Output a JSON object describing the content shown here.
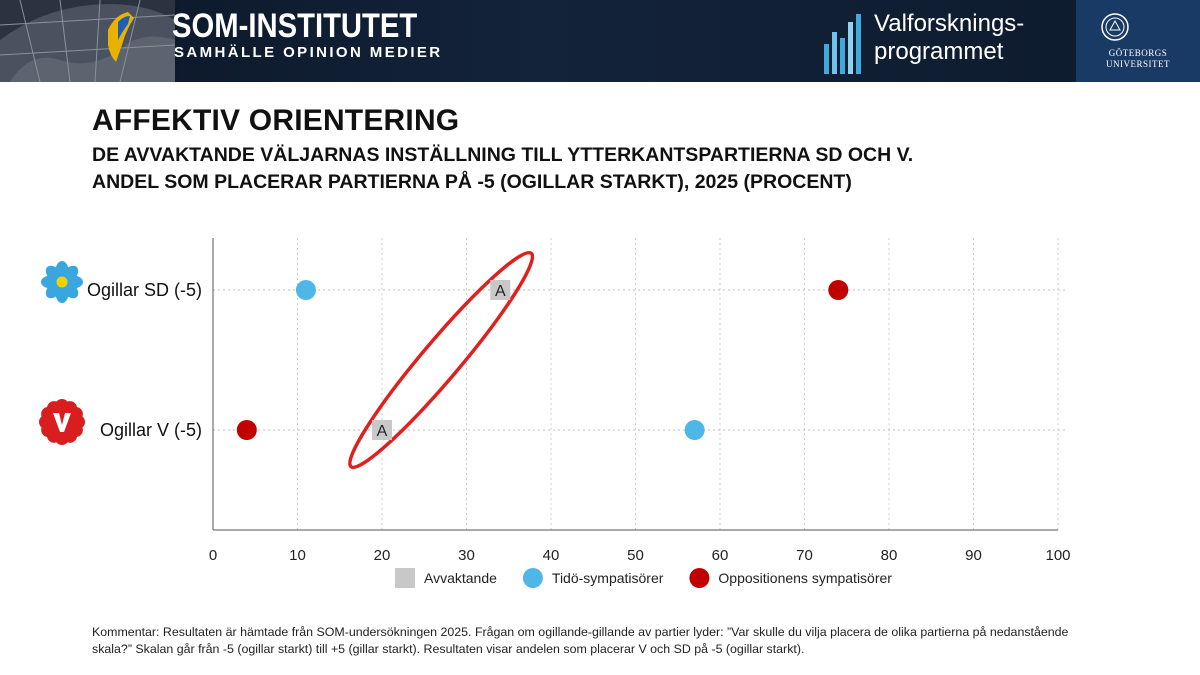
{
  "header": {
    "brand_title": "SOM-INSTITUTET",
    "brand_subtitle": "SAMHÄLLE OPINION MEDIER",
    "program_line1": "Valforsknings-",
    "program_line2": "programmet",
    "university_line1": "GÖTEBORGS",
    "university_line2": "UNIVERSITET"
  },
  "title": "AFFEKTIV ORIENTERING",
  "subtitle_line1": "DE AVVAKTANDE VÄLJARNAS INSTÄLLNING TILL YTTERKANTSPARTIERNA SD OCH V.",
  "subtitle_line2": "ANDEL SOM PLACERAR PARTIERNA PÅ -5 (OGILLAR STARKT), 2025 (PROCENT)",
  "comment": "Kommentar: Resultaten är hämtade från SOM-undersökningen 2025. Frågan om ogillande-gillande av partier lyder: ”Var skulle du vilja placera de olika partierna på nedanstående skala?” Skalan går från -5 (ogillar starkt) till +5 (gillar starkt). Resultaten visar andelen som placerar V och SD på -5 (ogillar starkt).",
  "colors": {
    "avvaktande": "#c8c8c8",
    "tido": "#4fb6e8",
    "opposition": "#c00000",
    "highlight": "#e01f1f"
  },
  "chart_data": {
    "type": "scatter",
    "categories": [
      "Ogillar SD (-5)",
      "Ogillar V (-5)"
    ],
    "category_icons": [
      "sd-flower-icon",
      "v-party-icon"
    ],
    "xlim": [
      0,
      100
    ],
    "xticks": [
      0,
      10,
      20,
      30,
      40,
      50,
      60,
      70,
      80,
      90,
      100
    ],
    "grid": true,
    "legend_position": "bottom",
    "series": [
      {
        "name": "Avvaktande",
        "marker": "square",
        "marker_label": "A",
        "color": "#c8c8c8",
        "values": [
          34,
          20
        ]
      },
      {
        "name": "Tidö-sympatisörer",
        "marker": "circle",
        "color": "#4fb6e8",
        "values": [
          11,
          57
        ]
      },
      {
        "name": "Oppositionens sympatisörer",
        "marker": "circle",
        "color": "#c00000",
        "values": [
          74,
          4
        ]
      }
    ],
    "annotation": "ellipse highlighting Avvaktande markers"
  }
}
